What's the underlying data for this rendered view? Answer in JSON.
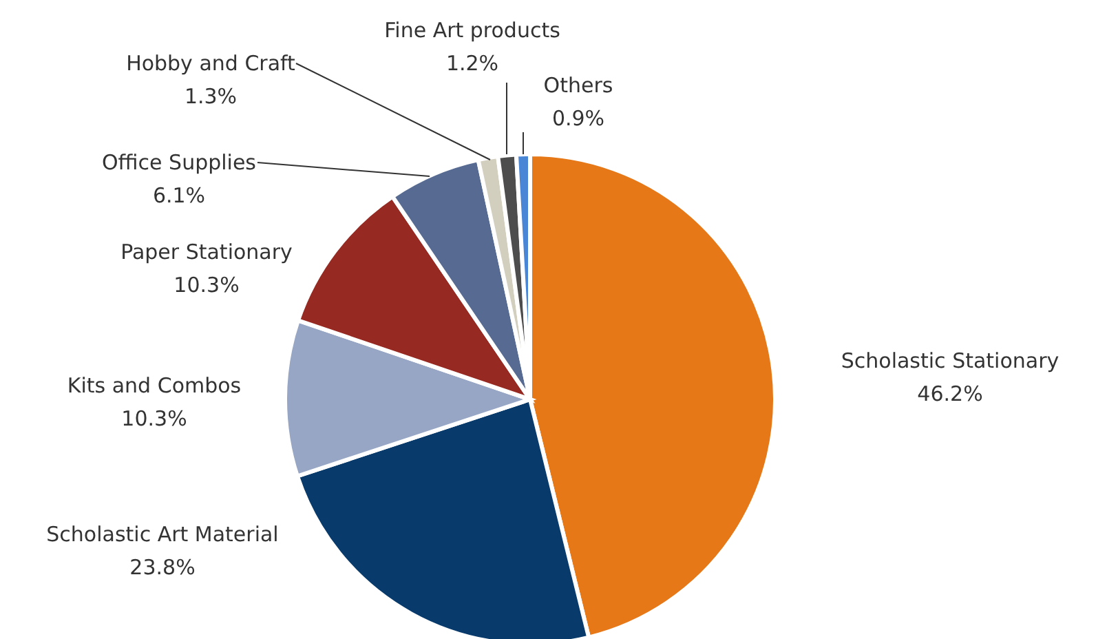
{
  "chart_data": {
    "type": "pie",
    "categories": [
      "Scholastic Stationary",
      "Scholastic Art Material",
      "Kits and Combos",
      "Paper Stationary",
      "Office Supplies",
      "Hobby and Craft",
      "Fine Art products",
      "Others"
    ],
    "values": [
      46.2,
      23.8,
      10.3,
      10.3,
      6.1,
      1.3,
      1.2,
      0.9
    ],
    "value_labels": [
      "46.2%",
      "23.8%",
      "10.3%",
      "10.3%",
      "6.1%",
      "1.3%",
      "1.2%",
      "0.9%"
    ],
    "colors": [
      "#e67817",
      "#083a6b",
      "#97a6c4",
      "#962a22",
      "#566a92",
      "#d3cfbf",
      "#4d4d4d",
      "#4a86d6"
    ]
  }
}
